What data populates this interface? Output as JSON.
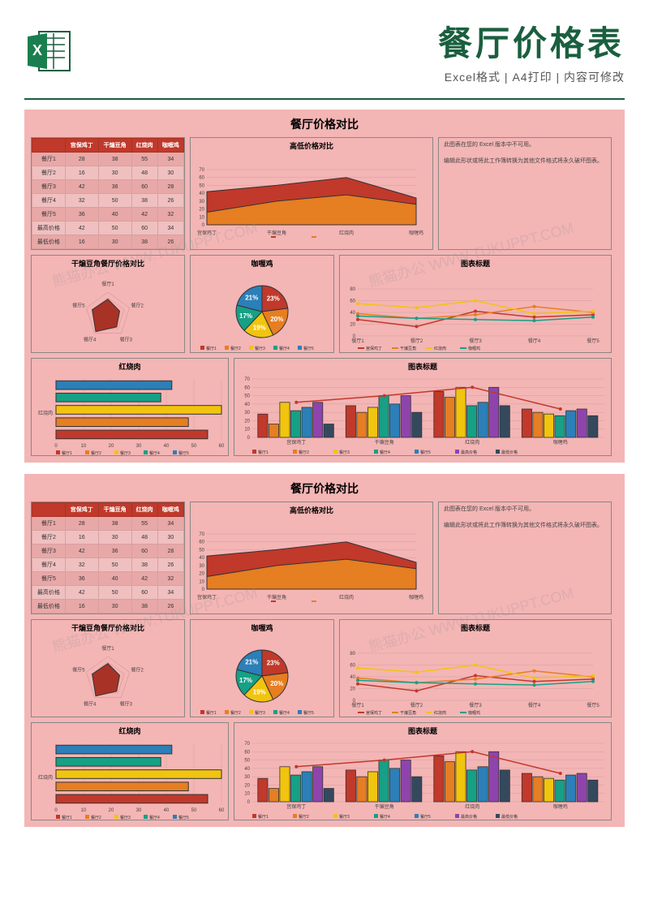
{
  "header": {
    "title": "餐厅价格表",
    "subtitle": "Excel格式 | A4打印 | 内容可修改"
  },
  "dashboard": {
    "title": "餐厅价格对比",
    "table": {
      "columns": [
        "",
        "宫保鸡丁",
        "干煸豆角",
        "红烧肉",
        "咖喱鸡"
      ],
      "rows": [
        [
          "餐厅1",
          "28",
          "38",
          "55",
          "34"
        ],
        [
          "餐厅2",
          "16",
          "30",
          "48",
          "30"
        ],
        [
          "餐厅3",
          "42",
          "36",
          "60",
          "28"
        ],
        [
          "餐厅4",
          "32",
          "50",
          "38",
          "26"
        ],
        [
          "餐厅5",
          "36",
          "40",
          "42",
          "32"
        ],
        [
          "最高价格",
          "42",
          "50",
          "60",
          "34"
        ],
        [
          "最低价格",
          "16",
          "30",
          "38",
          "26"
        ]
      ],
      "header_bg": "#c0392b"
    },
    "area_chart": {
      "title": "高低价格对比",
      "type": "area",
      "categories": [
        "宫保鸡丁",
        "干煸豆角",
        "红烧肉",
        "咖喱鸡"
      ],
      "series": [
        {
          "name": "最高价格",
          "values": [
            42,
            50,
            60,
            34
          ],
          "color": "#c0392b"
        },
        {
          "name": "最低价格",
          "values": [
            16,
            30,
            38,
            26
          ],
          "color": "#e67e22"
        }
      ],
      "ylim": [
        0,
        70
      ],
      "ytick_step": 10,
      "bg": "#f4b5b5",
      "border": "#333"
    },
    "note_box": {
      "line1": "此图表在您的 Excel 版本中不可用。",
      "line2": "编辑此形状或将此工作簿转换为其他文件格式将永久破坏图表。"
    },
    "radar_chart": {
      "title": "干煸豆角餐厅价格对比",
      "type": "radar",
      "categories": [
        "餐厅1",
        "餐厅2",
        "餐厅3",
        "餐厅4",
        "餐厅5"
      ],
      "values": [
        38,
        30,
        36,
        50,
        40
      ],
      "fill_color": "#a93226",
      "border": "#333"
    },
    "pie_chart": {
      "title": "咖喱鸡",
      "type": "pie",
      "slices": [
        {
          "label": "餐厅1",
          "pct": "23%",
          "color": "#c0392b"
        },
        {
          "label": "餐厅2",
          "pct": "20%",
          "color": "#e67e22"
        },
        {
          "label": "餐厅3",
          "pct": "19%",
          "color": "#f1c40f"
        },
        {
          "label": "餐厅4",
          "pct": "17%",
          "color": "#16a085"
        },
        {
          "label": "餐厅5",
          "pct": "21%",
          "color": "#2c7fb8"
        }
      ],
      "legend": [
        "餐厅1",
        "餐厅2",
        "餐厅3",
        "餐厅4",
        "餐厅5"
      ]
    },
    "line_chart": {
      "title": "图表标题",
      "type": "line",
      "categories": [
        "餐厅1",
        "餐厅2",
        "餐厅3",
        "餐厅4",
        "餐厅5"
      ],
      "series": [
        {
          "name": "宫保鸡丁",
          "values": [
            28,
            16,
            42,
            32,
            36
          ],
          "color": "#c0392b"
        },
        {
          "name": "干煸豆角",
          "values": [
            38,
            30,
            36,
            50,
            40
          ],
          "color": "#e67e22"
        },
        {
          "name": "红烧肉",
          "values": [
            55,
            48,
            60,
            38,
            42
          ],
          "color": "#f1c40f"
        },
        {
          "name": "咖喱鸡",
          "values": [
            34,
            30,
            28,
            26,
            32
          ],
          "color": "#16a085"
        }
      ],
      "ylim": [
        0,
        80
      ],
      "ytick_step": 20
    },
    "hbar_chart": {
      "title": "红烧肉",
      "type": "hbar",
      "category": "红烧肉",
      "bars": [
        {
          "label": "餐厅5",
          "value": 42,
          "color": "#2c7fb8"
        },
        {
          "label": "餐厅4",
          "value": 38,
          "color": "#16a085"
        },
        {
          "label": "餐厅3",
          "value": 60,
          "color": "#f1c40f"
        },
        {
          "label": "餐厅2",
          "value": 48,
          "color": "#e67e22"
        },
        {
          "label": "餐厅1",
          "value": 55,
          "color": "#c0392b"
        }
      ],
      "xlim": [
        0,
        60
      ],
      "xtick_step": 10
    },
    "vbar_chart": {
      "title": "图表标题",
      "type": "grouped-bar",
      "groups": [
        "宫保鸡丁",
        "干煸豆角",
        "红烧肉",
        "咖喱鸡"
      ],
      "series": [
        {
          "name": "餐厅1",
          "color": "#c0392b"
        },
        {
          "name": "餐厅2",
          "color": "#e67e22"
        },
        {
          "name": "餐厅3",
          "color": "#f1c40f"
        },
        {
          "name": "餐厅4",
          "color": "#16a085"
        },
        {
          "name": "餐厅5",
          "color": "#2c7fb8"
        },
        {
          "name": "最高价格",
          "color": "#8e44ad"
        },
        {
          "name": "最低价格",
          "color": "#34495e"
        }
      ],
      "data": [
        [
          28,
          16,
          42,
          32,
          36,
          42,
          16
        ],
        [
          38,
          30,
          36,
          50,
          40,
          50,
          30
        ],
        [
          55,
          48,
          60,
          38,
          42,
          60,
          38
        ],
        [
          34,
          30,
          28,
          26,
          32,
          34,
          26
        ]
      ],
      "ylim": [
        0,
        70
      ],
      "ytick_step": 10,
      "line_overlay": {
        "values": [
          42,
          50,
          60,
          34
        ],
        "color": "#c0392b"
      }
    }
  },
  "watermark": "熊猫办公 WWW.TUKUPPT.COM"
}
